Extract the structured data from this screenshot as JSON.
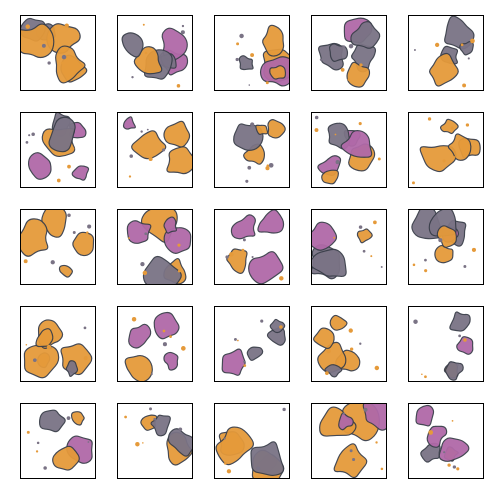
{
  "grid": {
    "rows": 5,
    "cols": 5,
    "colors": {
      "background": "#ffffff",
      "frame": "#000000",
      "gray": "#7a7385",
      "magenta": "#b069a8",
      "orange": "#e59a3a",
      "outline": "#3a3f4a"
    },
    "tiles": [
      {
        "seed": 11,
        "mix": 0.55
      },
      {
        "seed": 23,
        "mix": 0.35
      },
      {
        "seed": 37,
        "mix": 0.6
      },
      {
        "seed": 41,
        "mix": 0.2
      },
      {
        "seed": 53,
        "mix": 0.3
      },
      {
        "seed": 67,
        "mix": 0.2
      },
      {
        "seed": 71,
        "mix": 0.5
      },
      {
        "seed": 83,
        "mix": 0.55
      },
      {
        "seed": 97,
        "mix": 0.25
      },
      {
        "seed": 101,
        "mix": 0.9
      },
      {
        "seed": 113,
        "mix": 0.45
      },
      {
        "seed": 127,
        "mix": 0.25
      },
      {
        "seed": 131,
        "mix": 0.35
      },
      {
        "seed": 149,
        "mix": 0.3
      },
      {
        "seed": 151,
        "mix": 0.45
      },
      {
        "seed": 163,
        "mix": 0.8
      },
      {
        "seed": 173,
        "mix": 0.3
      },
      {
        "seed": 181,
        "mix": 0.25
      },
      {
        "seed": 191,
        "mix": 0.8
      },
      {
        "seed": 199,
        "mix": 0.6
      },
      {
        "seed": 211,
        "mix": 0.25
      },
      {
        "seed": 223,
        "mix": 0.35
      },
      {
        "seed": 227,
        "mix": 0.6
      },
      {
        "seed": 239,
        "mix": 0.5
      },
      {
        "seed": 251,
        "mix": 0.25
      }
    ]
  }
}
